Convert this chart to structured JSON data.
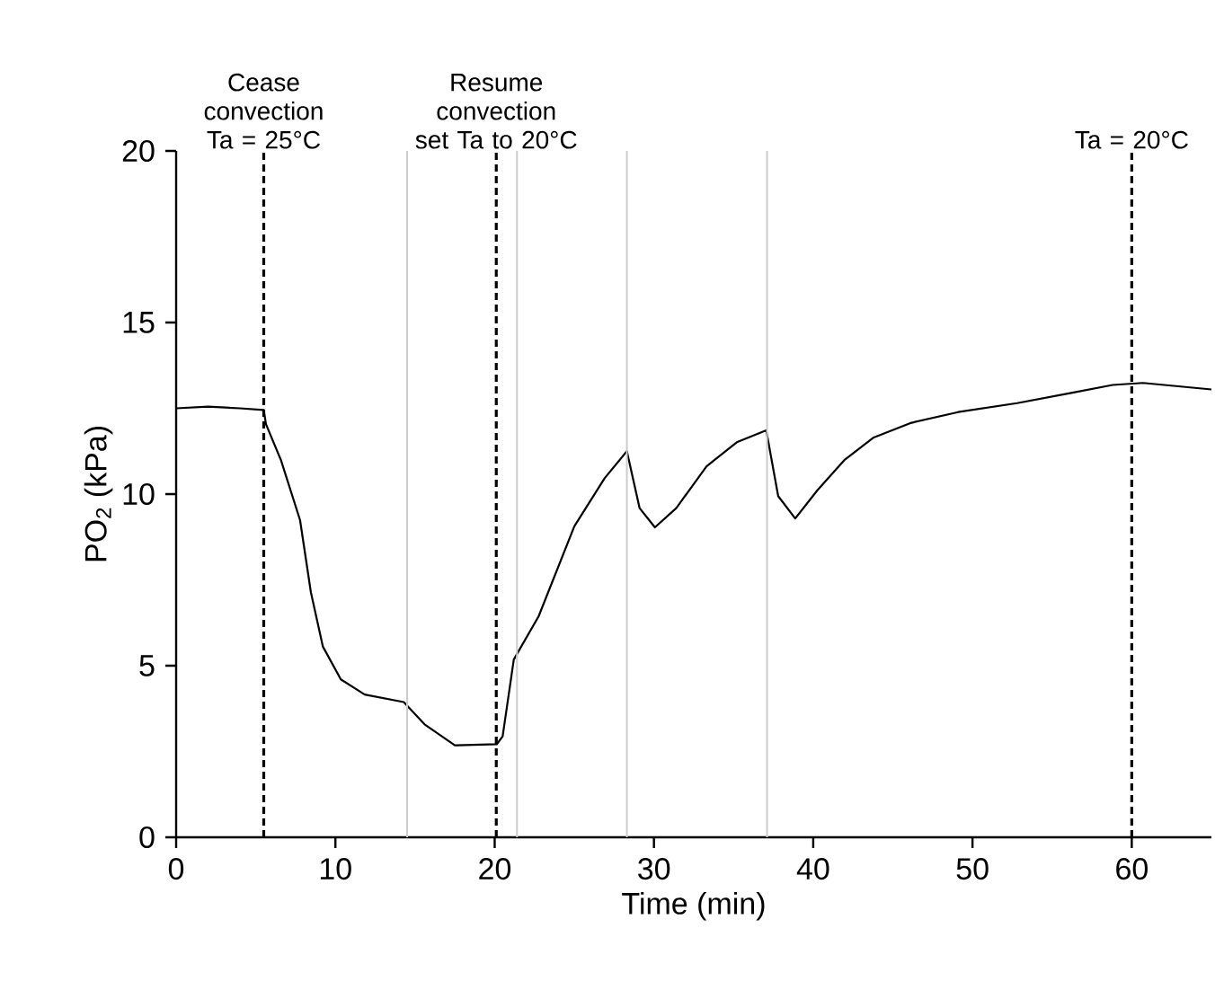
{
  "chart_data": {
    "type": "line",
    "xlabel": "Time (min)",
    "ylabel": "PO$_{2}$ (kPa)",
    "xlim": [
      0,
      65
    ],
    "ylim": [
      0,
      20
    ],
    "xticks": [
      0,
      10,
      20,
      30,
      40,
      50,
      60
    ],
    "yticks": [
      0,
      5,
      10,
      15,
      20
    ],
    "annotations": [
      {
        "text": "Cease convection Ta = 25°C",
        "x": 5.5,
        "y": 20
      },
      {
        "text": "Resume convection set Ta to 20°C",
        "x": 20.1,
        "y": 20
      },
      {
        "text": "Ta = 20°C",
        "x": 60,
        "y": 20
      }
    ],
    "grid": false,
    "marker": "none",
    "line_style": "solid",
    "series": [
      {
        "color": "#000000",
        "x": [
          0,
          2,
          4,
          5.5,
          5.64,
          6.58,
          7.78,
          8.46,
          9.21,
          10.34,
          11.84,
          14.29,
          15.6,
          17.5,
          20.13,
          20.5,
          21.2,
          22.76,
          25.0,
          26.9,
          28.3,
          29.1,
          30.06,
          31.4,
          33.3,
          35.2,
          37.05,
          37.8,
          38.87,
          40.26,
          41.95,
          43.8,
          46.1,
          49.1,
          52.8,
          56.2,
          58.8,
          60.7,
          65.0
        ],
        "values": [
          12.5,
          12.55,
          12.5,
          12.45,
          12.04,
          10.99,
          9.24,
          7.14,
          5.56,
          4.6,
          4.16,
          3.94,
          3.29,
          2.68,
          2.71,
          2.94,
          5.18,
          6.44,
          9.06,
          10.46,
          11.25,
          9.59,
          9.03,
          9.59,
          10.81,
          11.51,
          11.86,
          9.94,
          9.29,
          10.11,
          10.99,
          11.65,
          12.07,
          12.39,
          12.65,
          12.95,
          13.18,
          13.24,
          13.05
        ]
      }
    ],
    "ref_lines": [
      {
        "axis": "x",
        "value": 5.5,
        "color": "#000000",
        "line_style": "dashed"
      },
      {
        "axis": "x",
        "value": 20.1,
        "color": "#000000",
        "line_style": "dashed"
      },
      {
        "axis": "x",
        "value": 60,
        "color": "#000000",
        "line_style": "dashed"
      },
      {
        "axis": "x",
        "value": 14.5,
        "color": "#cccccc",
        "line_style": "solid"
      },
      {
        "axis": "x",
        "value": 21.4,
        "color": "#cccccc",
        "line_style": "solid"
      },
      {
        "axis": "x",
        "value": 28.3,
        "color": "#cccccc",
        "line_style": "solid"
      },
      {
        "axis": "x",
        "value": 37.1,
        "color": "#cccccc",
        "line_style": "solid"
      }
    ]
  }
}
